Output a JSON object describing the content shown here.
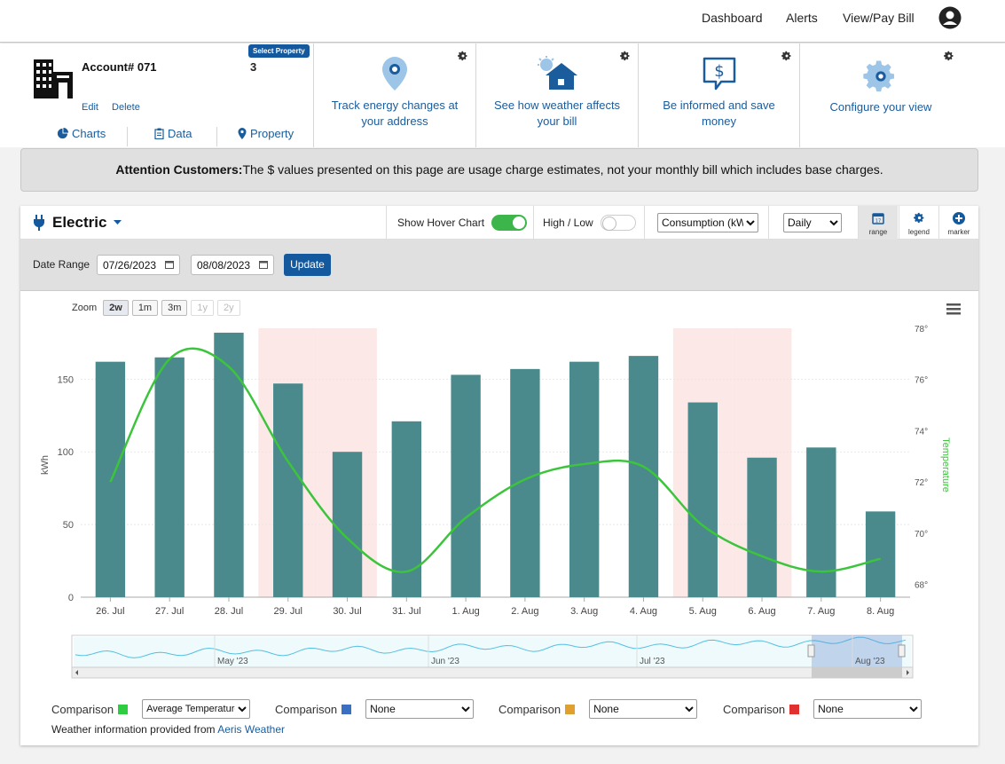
{
  "topnav": {
    "links": [
      "Dashboard",
      "Alerts",
      "View/Pay Bill"
    ]
  },
  "account": {
    "title": "Account# 071",
    "number_tail": "3",
    "select_property": "Select Property",
    "edit": "Edit",
    "delete": "Delete",
    "tabs": [
      "Charts",
      "Data",
      "Property"
    ]
  },
  "features": [
    {
      "icon": "map-pin-icon",
      "text": "Track energy changes at your address"
    },
    {
      "icon": "weather-house-icon",
      "text": "See how weather affects your bill"
    },
    {
      "icon": "dollar-chat-icon",
      "text": "Be informed and save money"
    },
    {
      "icon": "gear-icon",
      "text": "Configure your view"
    }
  ],
  "attention": {
    "bold": "Attention Customers:",
    "text": "The $ values presented on this page are usage charge estimates, not your monthly bill which includes base charges."
  },
  "controls": {
    "utility": "Electric",
    "hover_chart_label": "Show Hover Chart",
    "hover_chart_on": true,
    "high_low_label": "High / Low",
    "high_low_on": false,
    "measure": "Consumption (kWh)",
    "interval": "Daily",
    "icon_buttons": [
      "range",
      "legend",
      "marker"
    ]
  },
  "date_range": {
    "label": "Date Range",
    "start": "07/26/2023",
    "end": "08/08/2023",
    "update": "Update"
  },
  "zoom": {
    "label": "Zoom",
    "options": [
      "2w",
      "1m",
      "3m",
      "1y",
      "2y"
    ],
    "selected": "2w"
  },
  "navigator_labels": [
    "May '23",
    "Jun '23",
    "Jul '23",
    "Aug '23"
  ],
  "comparisons": [
    {
      "label": "Comparison",
      "color": "#2ecc40",
      "value": "Average Temperature"
    },
    {
      "label": "Comparison",
      "color": "#3a6fc1",
      "value": "None"
    },
    {
      "label": "Comparison",
      "color": "#e0a030",
      "value": "None"
    },
    {
      "label": "Comparison",
      "color": "#e03030",
      "value": "None"
    }
  ],
  "credit": {
    "text": "Weather information provided from ",
    "link": "Aeris Weather"
  },
  "colors": {
    "bar": "#4a8a8c",
    "temp_line": "#3cc43c",
    "weekend_band": "#fde8e8",
    "brand": "#14599e"
  },
  "chart_data": {
    "type": "bar",
    "categories": [
      "26. Jul",
      "27. Jul",
      "28. Jul",
      "29. Jul",
      "30. Jul",
      "31. Jul",
      "1. Aug",
      "2. Aug",
      "3. Aug",
      "4. Aug",
      "5. Aug",
      "6. Aug",
      "7. Aug",
      "8. Aug"
    ],
    "series": [
      {
        "name": "kWh",
        "values": [
          162,
          165,
          182,
          147,
          100,
          121,
          153,
          157,
          162,
          166,
          134,
          96,
          103,
          59
        ]
      },
      {
        "name": "Temperature",
        "values": [
          72.0,
          76.8,
          76.5,
          72.8,
          69.8,
          68.5,
          70.6,
          72.1,
          72.7,
          72.6,
          70.3,
          69.1,
          68.5,
          69.0
        ]
      }
    ],
    "highlight_categories": [
      "29. Jul",
      "30. Jul",
      "5. Aug",
      "6. Aug"
    ],
    "ylabel": "kWh",
    "y2label": "Temperature",
    "ylim": [
      0,
      185
    ],
    "yticks": [
      0,
      50,
      100,
      150
    ],
    "y2lim": [
      67.5,
      78
    ],
    "y2ticks": [
      "68°",
      "70°",
      "72°",
      "74°",
      "76°",
      "78°"
    ],
    "grid": true
  }
}
